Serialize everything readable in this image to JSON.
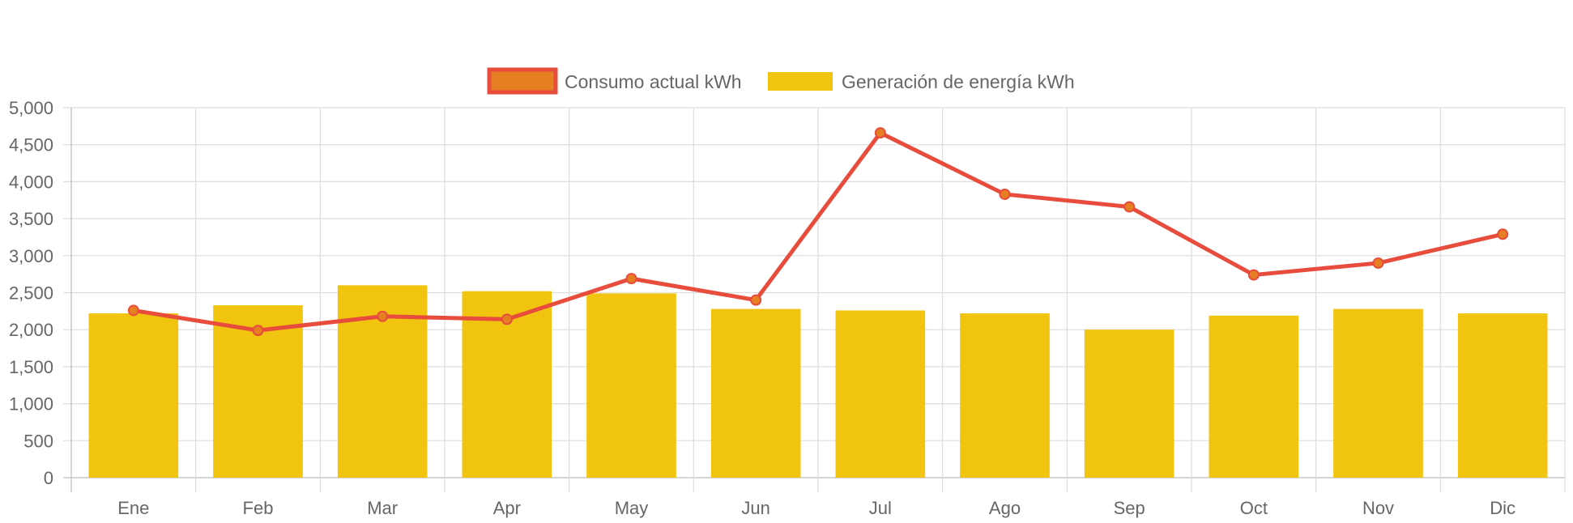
{
  "chart_data": {
    "type": "bar",
    "categories": [
      "Ene",
      "Feb",
      "Mar",
      "Apr",
      "May",
      "Jun",
      "Jul",
      "Ago",
      "Sep",
      "Oct",
      "Nov",
      "Dic"
    ],
    "series": [
      {
        "name": "Consumo actual kWh",
        "type": "line",
        "values": [
          2260,
          1990,
          2180,
          2140,
          2690,
          2400,
          4660,
          3830,
          3660,
          2740,
          2900,
          3290
        ],
        "color": "#e74c3c",
        "point_color": "#e67e22"
      },
      {
        "name": "Generación de energía kWh",
        "type": "bar",
        "values": [
          2220,
          2330,
          2600,
          2520,
          2490,
          2280,
          2260,
          2220,
          2000,
          2190,
          2280,
          2220
        ],
        "color": "#f1c40f"
      }
    ],
    "ylim": [
      0,
      5000
    ],
    "yticks": [
      "0",
      "500",
      "1,000",
      "1,500",
      "2,000",
      "2,500",
      "3,000",
      "3,500",
      "4,000",
      "4,500",
      "5,000"
    ],
    "grid": true,
    "legend_position": "top"
  }
}
